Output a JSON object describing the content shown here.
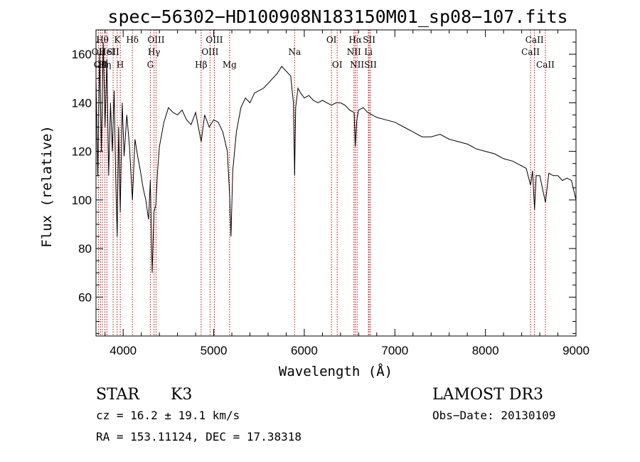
{
  "chart_data": {
    "type": "line",
    "title": "spec−56302−HD100908N183150M01_sp08−107.fits",
    "xlabel": "Wavelength (Å)",
    "ylabel": "Flux (relative)",
    "xlim": [
      3700,
      9000
    ],
    "ylim": [
      44,
      170
    ],
    "x_ticks": [
      4000,
      5000,
      6000,
      7000,
      8000,
      9000
    ],
    "y_ticks": [
      60,
      80,
      100,
      120,
      140,
      160
    ],
    "grid": false,
    "spectrum_color": "#000000",
    "line_marker_color": "#c00000",
    "series": [
      {
        "x": [
          3700,
          3720,
          3740,
          3760,
          3780,
          3800,
          3820,
          3840,
          3860,
          3880,
          3900,
          3920,
          3934,
          3950,
          3968,
          3990,
          4010,
          4040,
          4070,
          4102,
          4130,
          4160,
          4190,
          4220,
          4250,
          4280,
          4300,
          4320,
          4340,
          4361,
          4380,
          4400,
          4450,
          4500,
          4550,
          4600,
          4650,
          4700,
          4750,
          4800,
          4861,
          4900,
          4950,
          5000,
          5050,
          5100,
          5150,
          5175,
          5190,
          5210,
          5250,
          5300,
          5350,
          5400,
          5450,
          5500,
          5550,
          5600,
          5650,
          5700,
          5750,
          5800,
          5850,
          5880,
          5893,
          5905,
          5930,
          5960,
          6000,
          6050,
          6100,
          6150,
          6200,
          6250,
          6300,
          6350,
          6400,
          6450,
          6500,
          6550,
          6563,
          6580,
          6600,
          6650,
          6700,
          6750,
          6800,
          6900,
          7000,
          7100,
          7200,
          7300,
          7400,
          7500,
          7600,
          7700,
          7800,
          7900,
          8000,
          8100,
          8200,
          8300,
          8400,
          8450,
          8498,
          8520,
          8542,
          8560,
          8600,
          8662,
          8700,
          8750,
          8800,
          8850,
          8900,
          8950,
          9000
        ],
        "y": [
          150,
          110,
          160,
          120,
          165,
          130,
          158,
          110,
          140,
          120,
          145,
          105,
          85,
          130,
          95,
          140,
          118,
          135,
          122,
          100,
          125,
          118,
          112,
          105,
          100,
          92,
          108,
          70,
          95,
          98,
          112,
          122,
          132,
          138,
          136,
          135,
          137,
          133,
          131,
          136,
          124,
          135,
          130,
          133,
          132,
          128,
          120,
          102,
          85,
          112,
          128,
          138,
          142,
          140,
          144,
          145,
          146,
          148,
          150,
          152,
          155,
          153,
          151,
          140,
          110,
          138,
          146,
          144,
          142,
          143,
          141,
          140,
          141,
          140,
          139,
          140,
          140,
          139,
          137,
          136,
          122,
          133,
          137,
          138,
          136,
          135,
          134,
          133,
          132,
          130,
          128,
          126,
          126,
          127,
          125,
          124,
          123,
          121,
          120,
          119,
          117,
          116,
          114,
          113,
          106,
          112,
          96,
          110,
          110,
          99,
          111,
          110,
          110,
          108,
          109,
          108,
          100
        ]
      }
    ],
    "line_markers": [
      {
        "x": 3727,
        "label": "OII",
        "row": 1
      },
      {
        "x": 3750,
        "label": "OII",
        "row": 2
      },
      {
        "x": 3771,
        "label": "Hθ",
        "row": 0
      },
      {
        "x": 3798,
        "label": "Hη",
        "row": 2
      },
      {
        "x": 3820,
        "label": "HeI",
        "row": 1
      },
      {
        "x": 3889,
        "label": "SII",
        "row": 1
      },
      {
        "x": 3934,
        "label": "K",
        "row": 0
      },
      {
        "x": 3968,
        "label": "H",
        "row": 2
      },
      {
        "x": 4102,
        "label": "Hδ",
        "row": 0
      },
      {
        "x": 4300,
        "label": "G",
        "row": 2
      },
      {
        "x": 4341,
        "label": "Hγ",
        "row": 1
      },
      {
        "x": 4363,
        "label": "OIII",
        "row": 0
      },
      {
        "x": 4861,
        "label": "Hβ",
        "row": 2
      },
      {
        "x": 4959,
        "label": "OIII",
        "row": 1
      },
      {
        "x": 5007,
        "label": "OIII",
        "row": 0
      },
      {
        "x": 5175,
        "label": "Mg",
        "row": 2
      },
      {
        "x": 5893,
        "label": "Na",
        "row": 1
      },
      {
        "x": 6300,
        "label": "OI",
        "row": 0
      },
      {
        "x": 6363,
        "label": "OI",
        "row": 2
      },
      {
        "x": 6548,
        "label": "NII",
        "row": 1
      },
      {
        "x": 6563,
        "label": "Hα",
        "row": 0
      },
      {
        "x": 6583,
        "label": "NII",
        "row": 2
      },
      {
        "x": 6708,
        "label": "Li",
        "row": 1
      },
      {
        "x": 6716,
        "label": "SII",
        "row": 0
      },
      {
        "x": 6731,
        "label": "SII",
        "row": 2
      },
      {
        "x": 8498,
        "label": "CaII",
        "row": 1
      },
      {
        "x": 8542,
        "label": "CaII",
        "row": 0
      },
      {
        "x": 8662,
        "label": "CaII",
        "row": 2
      }
    ]
  },
  "info": {
    "object_class": "STAR",
    "subclass": "K3",
    "survey": "LAMOST DR3",
    "cz": "cz = 16.2 ± 19.1 km/s",
    "obs_date": "Obs−Date: 20130109",
    "coords": "RA = 153.11124, DEC =  17.38318"
  }
}
